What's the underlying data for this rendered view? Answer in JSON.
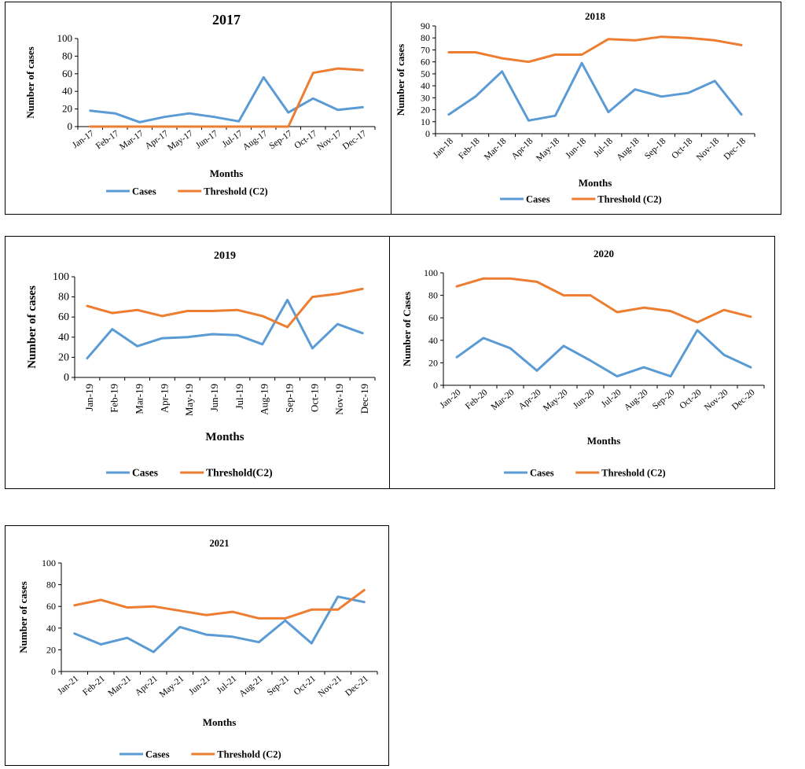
{
  "colors": {
    "cases": "#5b9bd5",
    "threshold": "#ed7d31",
    "axis": "#000000"
  },
  "chart_data": [
    {
      "type": "line",
      "title": "2017",
      "xlabel": "Months",
      "ylabel": "Number of cases",
      "ylim": [
        0,
        100
      ],
      "yticks": [
        0,
        20,
        40,
        60,
        80,
        100
      ],
      "grid": false,
      "legend": "bottom",
      "categories": [
        "Jan-17",
        "Feb-17",
        "Mar-17",
        "Apr-17",
        "May-17",
        "Jun-17",
        "Jul-17",
        "Aug-17",
        "Sep-17",
        "Oct-17",
        "Nov-17",
        "Dec-17"
      ],
      "series": [
        {
          "name": "Cases",
          "values": [
            18,
            15,
            5,
            11,
            15,
            11,
            6,
            56,
            16,
            32,
            19,
            22
          ]
        },
        {
          "name": "Threshold (C2)",
          "values": [
            0,
            0,
            0,
            0,
            0,
            0,
            0,
            0,
            0,
            61,
            66,
            64
          ]
        }
      ]
    },
    {
      "type": "line",
      "title": "2018",
      "xlabel": "Months",
      "ylabel": "Number of cases",
      "ylim": [
        0,
        90
      ],
      "yticks": [
        0,
        10,
        20,
        30,
        40,
        50,
        60,
        70,
        80,
        90
      ],
      "grid": false,
      "legend": "bottom",
      "categories": [
        "Jan-18",
        "Feb-18",
        "Mar-18",
        "Apr-18",
        "May-18",
        "Jun-18",
        "Jul-18",
        "Aug-18",
        "Sep-18",
        "Oct-18",
        "Nov-18",
        "Dec-18"
      ],
      "series": [
        {
          "name": "Cases",
          "values": [
            16,
            31,
            52,
            11,
            15,
            59,
            18,
            37,
            31,
            34,
            44,
            16
          ]
        },
        {
          "name": "Threshold (C2)",
          "values": [
            68,
            68,
            63,
            60,
            66,
            66,
            79,
            78,
            81,
            80,
            78,
            74
          ]
        }
      ]
    },
    {
      "type": "line",
      "title": "2019",
      "xlabel": "Months",
      "ylabel": "Number of cases",
      "ylim": [
        0,
        100
      ],
      "yticks": [
        0,
        20,
        40,
        60,
        80,
        100
      ],
      "grid": false,
      "legend": "bottom",
      "categories": [
        "Jan-19",
        "Feb-19",
        "Mar-19",
        "Apr-19",
        "May-19",
        "Jun-19",
        "Jul-19",
        "Aug-19",
        "Sep-19",
        "Oct-19",
        "Nov-19",
        "Dec-19"
      ],
      "series": [
        {
          "name": "Cases",
          "values": [
            19,
            48,
            31,
            39,
            40,
            43,
            42,
            33,
            77,
            29,
            53,
            44
          ]
        },
        {
          "name": "Threshold(C2)",
          "values": [
            71,
            64,
            67,
            61,
            66,
            66,
            67,
            61,
            50,
            80,
            83,
            88
          ]
        }
      ]
    },
    {
      "type": "line",
      "title": "2020",
      "xlabel": "Months",
      "ylabel": "Number of Cases",
      "ylim": [
        0,
        100
      ],
      "yticks": [
        0,
        20,
        40,
        60,
        80,
        100
      ],
      "grid": false,
      "legend": "bottom",
      "categories": [
        "Jan-20",
        "Feb-20",
        "Mar-20",
        "Apr-20",
        "May-20",
        "Jun-20",
        "Jul-20",
        "Aug-20",
        "Sep-20",
        "Oct-20",
        "Nov-20",
        "Dec-20"
      ],
      "series": [
        {
          "name": "Cases",
          "values": [
            25,
            42,
            33,
            13,
            35,
            22,
            8,
            16,
            8,
            49,
            27,
            16
          ]
        },
        {
          "name": "Threshold (C2)",
          "values": [
            88,
            95,
            95,
            92,
            80,
            80,
            65,
            69,
            66,
            56,
            67,
            61
          ]
        }
      ]
    },
    {
      "type": "line",
      "title": "2021",
      "xlabel": "Months",
      "ylabel": "Number of cases",
      "ylim": [
        0,
        100
      ],
      "yticks": [
        0,
        20,
        40,
        60,
        80,
        100
      ],
      "grid": false,
      "legend": "bottom",
      "categories": [
        "Jan-21",
        "Feb-21",
        "Mar-21",
        "Apr-21",
        "May-21",
        "Jun-21",
        "Jul-21",
        "Aug-21",
        "Sep-21",
        "Oct-21",
        "Nov-21",
        "Dec-21"
      ],
      "series": [
        {
          "name": "Cases",
          "values": [
            35,
            25,
            31,
            18,
            41,
            34,
            32,
            27,
            47,
            26,
            69,
            64
          ]
        },
        {
          "name": "Threshold (C2)",
          "values": [
            61,
            66,
            59,
            60,
            56,
            52,
            55,
            49,
            49,
            57,
            57,
            75
          ]
        }
      ]
    }
  ]
}
